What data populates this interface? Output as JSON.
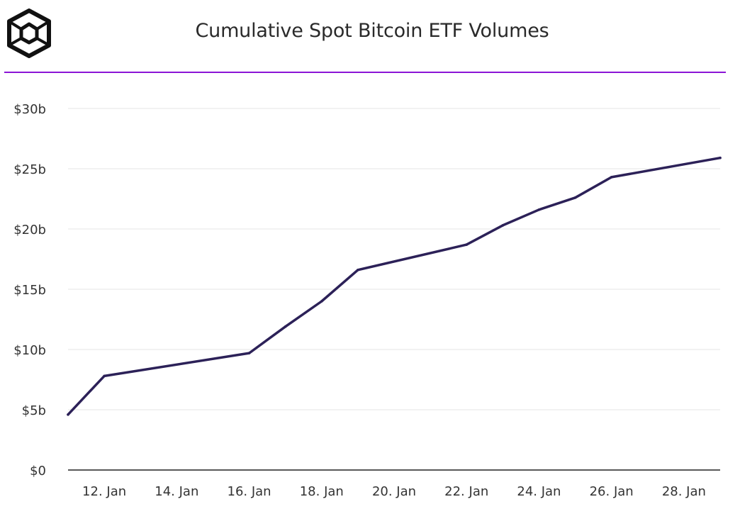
{
  "header": {
    "title": "Cumulative Spot Bitcoin ETF Volumes"
  },
  "colors": {
    "accent_rule": "#8b15d6",
    "series_line": "#2c2158",
    "grid": "#e6e6e6",
    "axis": "#222222",
    "logo": "#111111"
  },
  "chart_data": {
    "type": "line",
    "title": "Cumulative Spot Bitcoin ETF Volumes",
    "xlabel": "",
    "ylabel": "",
    "x_unit": "date",
    "x": [
      "2024-01-11",
      "2024-01-12",
      "2024-01-16",
      "2024-01-17",
      "2024-01-18",
      "2024-01-19",
      "2024-01-22",
      "2024-01-23",
      "2024-01-24",
      "2024-01-25",
      "2024-01-26",
      "2024-01-29"
    ],
    "series": [
      {
        "values": [
          4.6,
          7.8,
          9.7,
          11.9,
          14.0,
          16.6,
          18.7,
          20.3,
          21.6,
          22.6,
          24.3,
          25.9
        ]
      }
    ],
    "y_ticks": [
      0,
      5,
      10,
      15,
      20,
      25,
      30
    ],
    "y_tick_labels": [
      "$0",
      "$5b",
      "$10b",
      "$15b",
      "$20b",
      "$25b",
      "$30b"
    ],
    "x_ticks": [
      "2024-01-12",
      "2024-01-14",
      "2024-01-16",
      "2024-01-18",
      "2024-01-20",
      "2024-01-22",
      "2024-01-24",
      "2024-01-26",
      "2024-01-28"
    ],
    "x_tick_labels": [
      "12. Jan",
      "14. Jan",
      "16. Jan",
      "18. Jan",
      "20. Jan",
      "22. Jan",
      "24. Jan",
      "26. Jan",
      "28. Jan"
    ],
    "xlim": [
      "2024-01-11",
      "2024-01-29"
    ],
    "ylim": [
      0,
      30
    ],
    "grid": true,
    "legend": "none"
  }
}
